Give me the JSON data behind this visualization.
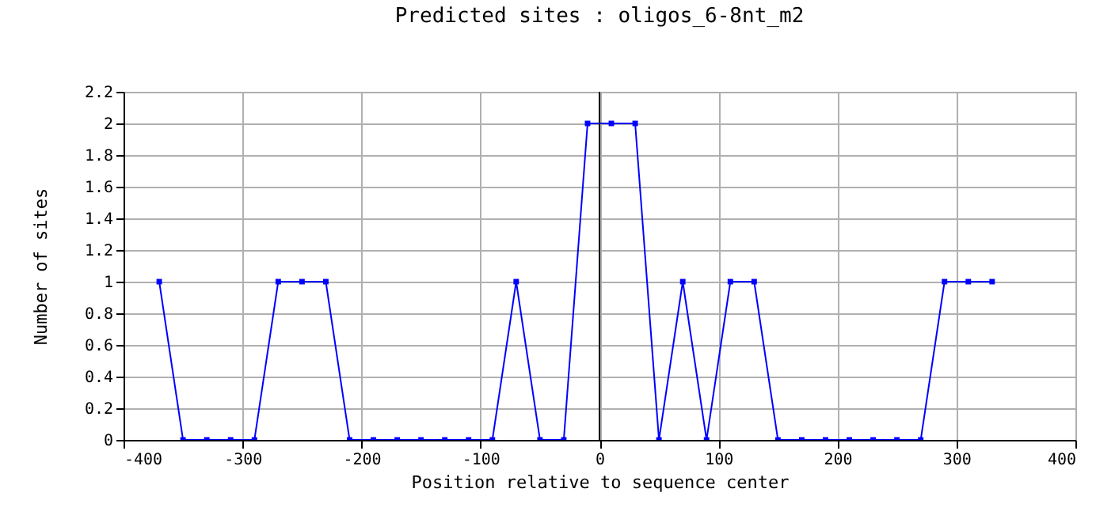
{
  "chart_data": {
    "type": "line",
    "title": "Predicted sites : oligos_6-8nt_m2",
    "xlabel": "Position relative to sequence center",
    "ylabel": "Number of sites",
    "x": [
      -370,
      -350,
      -330,
      -310,
      -290,
      -270,
      -250,
      -230,
      -210,
      -190,
      -170,
      -150,
      -130,
      -110,
      -90,
      -70,
      -50,
      -30,
      -10,
      10,
      30,
      50,
      70,
      90,
      110,
      130,
      150,
      170,
      190,
      210,
      230,
      250,
      270,
      290,
      310,
      330
    ],
    "series": [
      {
        "color": "#0000ff",
        "values": [
          1,
          0,
          0,
          0,
          0,
          1,
          1,
          1,
          0,
          0,
          0,
          0,
          0,
          0,
          0,
          1,
          0,
          0,
          2,
          2,
          2,
          0,
          1,
          0,
          1,
          1,
          0,
          0,
          0,
          0,
          0,
          0,
          0,
          1,
          1,
          1
        ]
      }
    ],
    "xlim": [
      -400,
      400
    ],
    "xticks": [
      -400,
      -300,
      -200,
      -100,
      0,
      100,
      200,
      300,
      400
    ],
    "ylim": [
      0,
      2.2
    ],
    "yticks": [
      0,
      0.2,
      0.4,
      0.6,
      0.8,
      1,
      1.2,
      1.4,
      1.6,
      1.8,
      2,
      2.2
    ],
    "ref_lines": [
      {
        "axis": "x",
        "value": 0,
        "color": "#000000"
      }
    ],
    "grid": true,
    "marker": "square",
    "line_style": "solid",
    "legend": false
  }
}
